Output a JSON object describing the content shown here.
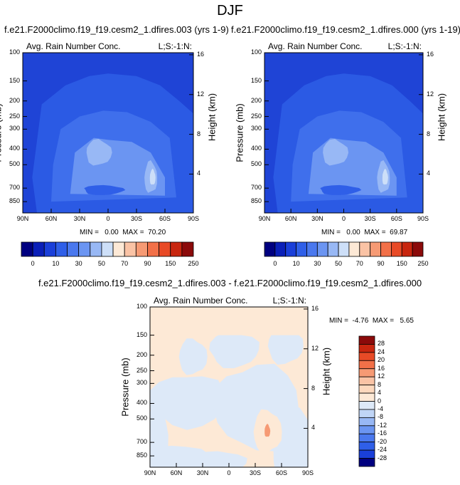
{
  "figure": {
    "title": "DJF",
    "panel_label_left": "Avg. Rain Number Conc.",
    "panel_label_right": "L;S:-1:N:",
    "ylabel_left": "Pressure (mb)",
    "ylabel_right": "Height (km)"
  },
  "chart_data": [
    {
      "type": "heatmap",
      "title": "f.e21.F2000climo.f19_f19.cesm2_1.dfires.003 (yrs 1-9)",
      "panel_label_left": "Avg. Rain Number Conc.",
      "panel_label_right": "L;S:-1:N:",
      "xlabel": "",
      "ylabel": "Pressure (mb)",
      "y2label": "Height (km)",
      "x_ticks": [
        "90N",
        "60N",
        "30N",
        "0",
        "30S",
        "60S",
        "90S"
      ],
      "x_range": [
        90,
        -90
      ],
      "y_ticks": [
        100,
        150,
        200,
        250,
        300,
        400,
        500,
        700,
        850
      ],
      "y_range": [
        100,
        1000
      ],
      "y_scale": "log",
      "y2_ticks": [
        16,
        12,
        8,
        4
      ],
      "min_text": "MIN =   0.00",
      "max_text": "MAX =  70.20",
      "colorbar_levels": [
        0,
        10,
        30,
        50,
        70,
        90,
        150,
        250
      ],
      "colorbar_orientation": "horizontal",
      "colorbar_colors": [
        "#000080",
        "#0a1fb8",
        "#1a3fd9",
        "#2f5fe8",
        "#4a78ee",
        "#6b95f2",
        "#98b8f5",
        "#cddff8",
        "#fde9d6",
        "#fac3a5",
        "#f69a74",
        "#f27048",
        "#e84a26",
        "#c8260f",
        "#8b0a0a"
      ]
    },
    {
      "type": "heatmap",
      "title": "f.e21.F2000climo.f19_f19.cesm2_1.dfires.000 (yrs 1-19)",
      "panel_label_left": "Avg. Rain Number Conc.",
      "panel_label_right": "L;S:-1:N:",
      "xlabel": "",
      "ylabel": "Pressure (mb)",
      "y2label": "Height (km)",
      "x_ticks": [
        "90N",
        "60N",
        "30N",
        "0",
        "30S",
        "60S",
        "90S"
      ],
      "x_range": [
        90,
        -90
      ],
      "y_ticks": [
        100,
        150,
        200,
        250,
        300,
        400,
        500,
        700,
        850
      ],
      "y_range": [
        100,
        1000
      ],
      "y_scale": "log",
      "y2_ticks": [
        16,
        12,
        8,
        4
      ],
      "min_text": "MIN =   0.00",
      "max_text": "MAX =  69.87",
      "colorbar_levels": [
        0,
        10,
        30,
        50,
        70,
        90,
        150,
        250
      ],
      "colorbar_orientation": "horizontal",
      "colorbar_colors": [
        "#000080",
        "#0a1fb8",
        "#1a3fd9",
        "#2f5fe8",
        "#4a78ee",
        "#6b95f2",
        "#98b8f5",
        "#cddff8",
        "#fde9d6",
        "#fac3a5",
        "#f69a74",
        "#f27048",
        "#e84a26",
        "#c8260f",
        "#8b0a0a"
      ]
    },
    {
      "type": "heatmap",
      "title": "f.e21.F2000climo.f19_f19.cesm2_1.dfires.003 - f.e21.F2000climo.f19_f19.cesm2_1.dfires.000",
      "panel_label_left": "Avg. Rain Number Conc.",
      "panel_label_right": "L;S:-1:N:",
      "xlabel": "",
      "ylabel": "Pressure (mb)",
      "y2label": "Height (km)",
      "x_ticks": [
        "90N",
        "60N",
        "30N",
        "0",
        "30S",
        "60S",
        "90S"
      ],
      "x_range": [
        90,
        -90
      ],
      "y_ticks": [
        100,
        150,
        200,
        250,
        300,
        400,
        500,
        700,
        850
      ],
      "y_range": [
        100,
        1000
      ],
      "y_scale": "log",
      "y2_ticks": [
        16,
        12,
        8,
        4
      ],
      "min_text": "MIN =  -4.76",
      "max_text": "MAX =   5.65",
      "colorbar_levels": [
        28,
        24,
        20,
        16,
        12,
        8,
        4,
        0,
        -4,
        -8,
        -12,
        -16,
        -20,
        -24,
        -28
      ],
      "colorbar_orientation": "vertical",
      "colorbar_colors": [
        "#8b0a0a",
        "#c8260f",
        "#e84a26",
        "#f27048",
        "#f69a74",
        "#fac3a5",
        "#fdd8bd",
        "#fde9d6",
        "#dde9f8",
        "#c0d5f6",
        "#98b8f5",
        "#6b95f2",
        "#4a78ee",
        "#2f5fe8",
        "#1a3fd9",
        "#000080"
      ]
    }
  ]
}
